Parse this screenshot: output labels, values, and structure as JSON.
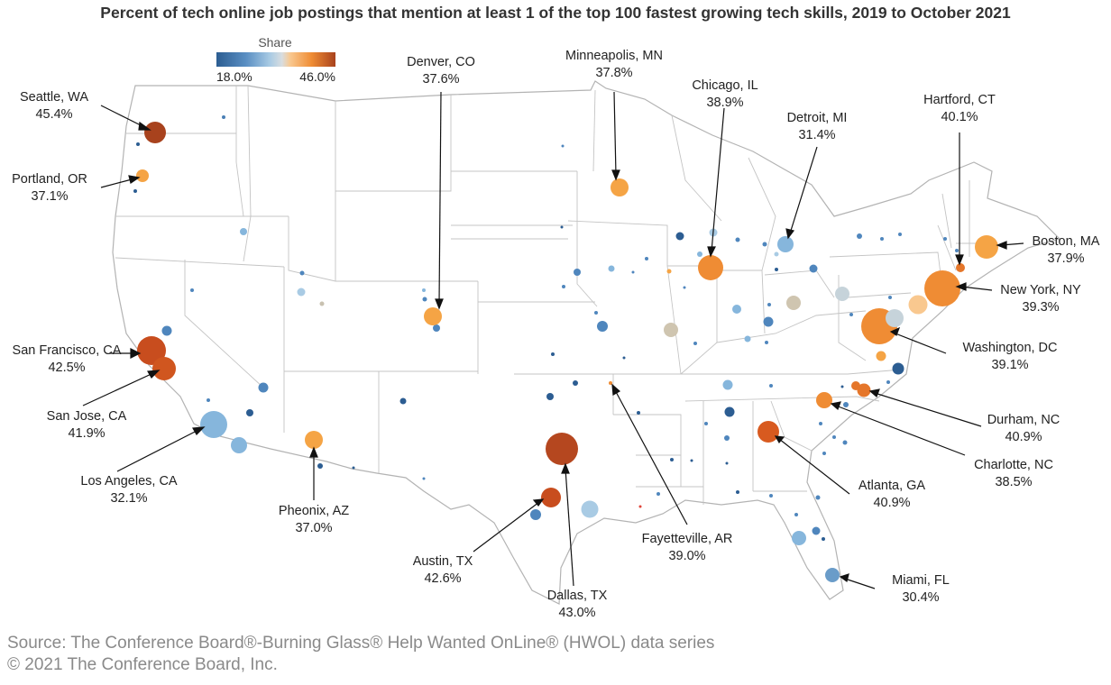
{
  "title": "Percent of tech online job postings that mention at least 1 of the top 100 fastest growing tech skills, 2019 to October 2021",
  "legend": {
    "title": "Share",
    "min_label": "18.0%",
    "max_label": "46.0%",
    "min": 18.0,
    "max": 46.0,
    "colors": [
      "#2c5d92",
      "#4f86bd",
      "#86b6dc",
      "#c6dcec",
      "#f9c88f",
      "#f5a445",
      "#e5762a",
      "#b5471f"
    ]
  },
  "labeled_metros": [
    {
      "name": "Seattle, WA",
      "value_label": "45.4%",
      "value": 45.4
    },
    {
      "name": "Portland, OR",
      "value_label": "37.1%",
      "value": 37.1
    },
    {
      "name": "San Francisco, CA",
      "value_label": "42.5%",
      "value": 42.5
    },
    {
      "name": "San Jose, CA",
      "value_label": "41.9%",
      "value": 41.9
    },
    {
      "name": "Los Angeles, CA",
      "value_label": "32.1%",
      "value": 32.1
    },
    {
      "name": "Pheonix, AZ",
      "value_label": "37.0%",
      "value": 37.0
    },
    {
      "name": "Denver, CO",
      "value_label": "37.6%",
      "value": 37.6
    },
    {
      "name": "Minneapolis, MN",
      "value_label": "37.8%",
      "value": 37.8
    },
    {
      "name": "Chicago, IL",
      "value_label": "38.9%",
      "value": 38.9
    },
    {
      "name": "Detroit, MI",
      "value_label": "31.4%",
      "value": 31.4
    },
    {
      "name": "Hartford, CT",
      "value_label": "40.1%",
      "value": 40.1
    },
    {
      "name": "Boston, MA",
      "value_label": "37.9%",
      "value": 37.9
    },
    {
      "name": "New York, NY",
      "value_label": "39.3%",
      "value": 39.3
    },
    {
      "name": "Washington, DC",
      "value_label": "39.1%",
      "value": 39.1
    },
    {
      "name": "Durham, NC",
      "value_label": "40.9%",
      "value": 40.9
    },
    {
      "name": "Charlotte, NC",
      "value_label": "38.5%",
      "value": 38.5
    },
    {
      "name": "Atlanta, GA",
      "value_label": "40.9%",
      "value": 40.9
    },
    {
      "name": "Austin, TX",
      "value_label": "42.6%",
      "value": 42.6
    },
    {
      "name": "Dallas, TX",
      "value_label": "43.0%",
      "value": 43.0
    },
    {
      "name": "Fayetteville, AR",
      "value_label": "39.0%",
      "value": 39.0
    },
    {
      "name": "Miami, FL",
      "value_label": "30.4%",
      "value": 30.4
    }
  ],
  "source_line": "Source: The Conference Board®-Burning Glass® Help Wanted OnLine® (HWOL) data series",
  "copyright_line": "© 2021 The Conference Board, Inc."
}
